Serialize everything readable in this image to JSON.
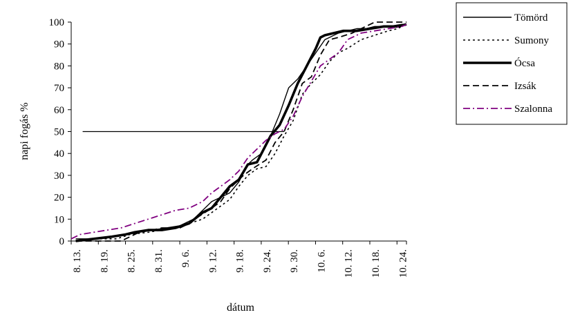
{
  "chart_data": {
    "type": "line",
    "title": "",
    "xlabel": "dátum",
    "ylabel": "napi fogás %",
    "ylim": [
      0,
      100
    ],
    "yticks": [
      0,
      10,
      20,
      30,
      40,
      50,
      60,
      70,
      80,
      90,
      100
    ],
    "xticks": [
      "8. 13.",
      "8. 19.",
      "8. 25.",
      "8. 31.",
      "9. 6.",
      "9. 12.",
      "9. 18.",
      "9. 24.",
      "9. 30.",
      "10. 6.",
      "10. 12.",
      "10. 18.",
      "10. 24."
    ],
    "x_unit": "days from 8. 13.",
    "x_range": [
      0,
      74
    ],
    "grid": false,
    "legend": {
      "position": "right"
    },
    "reference_line": {
      "y": 50,
      "x_start": 1,
      "x_end": 47
    },
    "series": [
      {
        "name": "Tömörd",
        "color": "#000000",
        "stroke_width": 1.4,
        "dash": "",
        "x": [
          1,
          5,
          9,
          12,
          15,
          18,
          21,
          24,
          27,
          29,
          31,
          33,
          35,
          37,
          39,
          40,
          42,
          44,
          46,
          47,
          48,
          50,
          52,
          54,
          56,
          57,
          58,
          59,
          61,
          63,
          65,
          67,
          70,
          73,
          74
        ],
        "y": [
          1,
          1,
          2,
          3,
          4,
          5,
          6,
          7,
          10,
          14,
          18,
          20,
          22,
          27,
          35,
          37,
          40,
          48,
          58,
          64,
          70,
          74,
          80,
          86,
          92,
          93,
          94,
          95,
          96,
          97,
          97,
          98,
          98,
          99,
          99
        ]
      },
      {
        "name": "Sumony",
        "color": "#000000",
        "stroke_width": 1.6,
        "dash": "3,4",
        "x": [
          1,
          6,
          10,
          13,
          17,
          20,
          23,
          26,
          29,
          31,
          33,
          35,
          37,
          39,
          41,
          43,
          45,
          47,
          49,
          51,
          53,
          55,
          57,
          59,
          61,
          64,
          67,
          70,
          72,
          74
        ],
        "y": [
          0,
          1,
          1,
          3,
          4,
          5,
          6,
          8,
          10,
          13,
          16,
          19,
          25,
          30,
          33,
          34,
          40,
          48,
          55,
          67,
          72,
          76,
          82,
          86,
          88,
          92,
          94,
          96,
          97,
          99
        ]
      },
      {
        "name": "Ócsa",
        "color": "#000000",
        "stroke_width": 3.6,
        "dash": "",
        "x": [
          1,
          5,
          9,
          12,
          14,
          17,
          20,
          23,
          26,
          29,
          31,
          33,
          35,
          37,
          39,
          41,
          42,
          44,
          46,
          48,
          50,
          52,
          54,
          55,
          56,
          58,
          60,
          63,
          66,
          69,
          72,
          74
        ],
        "y": [
          0,
          1,
          2,
          3,
          4,
          5,
          5,
          6,
          8,
          13,
          15,
          20,
          25,
          28,
          35,
          36,
          40,
          48,
          53,
          62,
          72,
          80,
          88,
          93,
          94,
          95,
          96,
          96,
          97,
          98,
          98,
          99
        ]
      },
      {
        "name": "Izsák",
        "color": "#000000",
        "stroke_width": 1.8,
        "dash": "9,5",
        "x": [
          1,
          6,
          11,
          13,
          15,
          18,
          20,
          24,
          26,
          28,
          31,
          33,
          35,
          38,
          40,
          43,
          45,
          47,
          49,
          51,
          53,
          55,
          57,
          59,
          62,
          65,
          67,
          70,
          74
        ],
        "y": [
          0,
          0,
          0,
          2,
          4,
          5,
          6,
          6,
          8,
          11,
          15,
          18,
          24,
          30,
          33,
          37,
          45,
          50,
          60,
          72,
          75,
          85,
          92,
          93,
          95,
          98,
          100,
          100,
          100
        ]
      },
      {
        "name": "Szalonna",
        "color": "#800080",
        "stroke_width": 1.8,
        "dash": "10,4,2,4",
        "x": [
          0,
          2,
          5,
          8,
          11,
          14,
          17,
          20,
          23,
          26,
          29,
          31,
          33,
          35,
          37,
          39,
          41,
          43,
          45,
          47,
          49,
          51,
          53,
          55,
          57,
          59,
          61,
          64,
          67,
          70,
          73,
          74
        ],
        "y": [
          1,
          3,
          4,
          5,
          6,
          8,
          10,
          12,
          14,
          15,
          18,
          22,
          25,
          28,
          32,
          38,
          42,
          46,
          49,
          51,
          57,
          66,
          73,
          80,
          83,
          86,
          92,
          95,
          96,
          97,
          98,
          99
        ]
      }
    ]
  }
}
